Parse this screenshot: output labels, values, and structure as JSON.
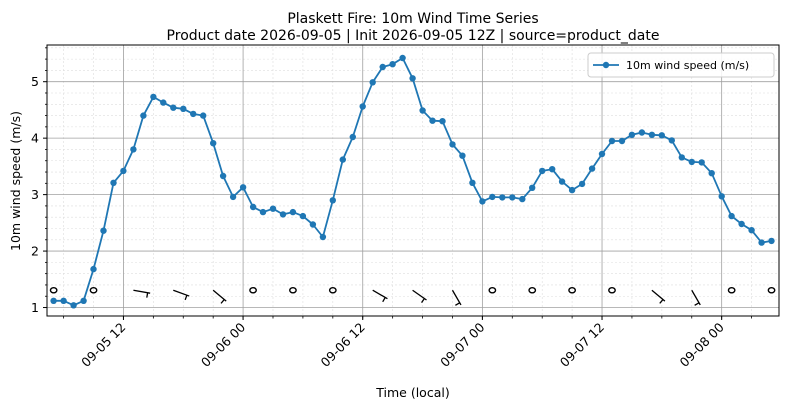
{
  "chart_data": {
    "type": "line",
    "title": "Plaskett Fire: 10m Wind Time Series",
    "subtitle": "Product date 2026-09-05 | Init 2026-09-05 12Z | source=product_date",
    "xlabel": "Time (local)",
    "ylabel": "10m wind speed (m/s)",
    "xlim": [
      "2026-09-05 04:20",
      "2026-09-08 05:45"
    ],
    "ylim": [
      0.85,
      5.65
    ],
    "yticks": [
      1,
      2,
      3,
      4,
      5
    ],
    "xticks": [
      "09-05 12",
      "09-06 00",
      "09-06 12",
      "09-07 00",
      "09-07 12",
      "09-08 00"
    ],
    "grid": true,
    "legend_position": "top-right",
    "series": [
      {
        "name": "10m wind speed (m/s)",
        "color": "#1f77b4",
        "x": [
          "2026-09-05 05:00",
          "2026-09-05 06:00",
          "2026-09-05 07:00",
          "2026-09-05 08:00",
          "2026-09-05 09:00",
          "2026-09-05 10:00",
          "2026-09-05 11:00",
          "2026-09-05 12:00",
          "2026-09-05 13:00",
          "2026-09-05 14:00",
          "2026-09-05 15:00",
          "2026-09-05 16:00",
          "2026-09-05 17:00",
          "2026-09-05 18:00",
          "2026-09-05 19:00",
          "2026-09-05 20:00",
          "2026-09-05 21:00",
          "2026-09-05 22:00",
          "2026-09-05 23:00",
          "2026-09-06 00:00",
          "2026-09-06 01:00",
          "2026-09-06 02:00",
          "2026-09-06 03:00",
          "2026-09-06 04:00",
          "2026-09-06 05:00",
          "2026-09-06 06:00",
          "2026-09-06 07:00",
          "2026-09-06 08:00",
          "2026-09-06 09:00",
          "2026-09-06 10:00",
          "2026-09-06 11:00",
          "2026-09-06 12:00",
          "2026-09-06 13:00",
          "2026-09-06 14:00",
          "2026-09-06 15:00",
          "2026-09-06 16:00",
          "2026-09-06 17:00",
          "2026-09-06 18:00",
          "2026-09-06 19:00",
          "2026-09-06 20:00",
          "2026-09-06 21:00",
          "2026-09-06 22:00",
          "2026-09-06 23:00",
          "2026-09-07 00:00",
          "2026-09-07 01:00",
          "2026-09-07 02:00",
          "2026-09-07 03:00",
          "2026-09-07 04:00",
          "2026-09-07 05:00",
          "2026-09-07 06:00",
          "2026-09-07 07:00",
          "2026-09-07 08:00",
          "2026-09-07 09:00",
          "2026-09-07 10:00",
          "2026-09-07 11:00",
          "2026-09-07 12:00",
          "2026-09-07 13:00",
          "2026-09-07 14:00",
          "2026-09-07 15:00",
          "2026-09-07 16:00",
          "2026-09-07 17:00",
          "2026-09-07 18:00",
          "2026-09-07 19:00",
          "2026-09-07 20:00",
          "2026-09-07 21:00",
          "2026-09-07 22:00",
          "2026-09-07 23:00",
          "2026-09-08 00:00",
          "2026-09-08 01:00",
          "2026-09-08 02:00",
          "2026-09-08 03:00",
          "2026-09-08 04:00",
          "2026-09-08 05:00"
        ],
        "values": [
          1.12,
          1.12,
          1.04,
          1.12,
          1.68,
          2.36,
          3.21,
          3.42,
          3.8,
          4.4,
          4.73,
          4.63,
          4.54,
          4.52,
          4.43,
          4.4,
          3.91,
          3.33,
          2.96,
          3.13,
          2.78,
          2.69,
          2.75,
          2.65,
          2.69,
          2.62,
          2.47,
          2.25,
          2.9,
          3.62,
          4.02,
          4.56,
          4.99,
          5.26,
          5.31,
          5.42,
          5.06,
          4.49,
          4.31,
          4.3,
          3.89,
          3.69,
          3.21,
          2.88,
          2.96,
          2.95,
          2.95,
          2.92,
          3.12,
          3.42,
          3.45,
          3.23,
          3.08,
          3.19,
          3.46,
          3.72,
          3.95,
          3.95,
          4.06,
          4.1,
          4.06,
          4.05,
          3.96,
          3.66,
          3.58,
          3.57,
          3.38,
          2.97,
          2.62,
          2.48,
          2.37,
          2.15,
          2.18
        ]
      }
    ],
    "wind_barbs": {
      "y": 1.2,
      "x": [
        "2026-09-05 05:00",
        "2026-09-05 09:00",
        "2026-09-05 13:00",
        "2026-09-05 17:00",
        "2026-09-05 21:00",
        "2026-09-06 01:00",
        "2026-09-06 05:00",
        "2026-09-06 09:00",
        "2026-09-06 13:00",
        "2026-09-06 17:00",
        "2026-09-06 21:00",
        "2026-09-07 01:00",
        "2026-09-07 05:00",
        "2026-09-07 09:00",
        "2026-09-07 13:00",
        "2026-09-07 17:00",
        "2026-09-07 21:00",
        "2026-09-08 01:00",
        "2026-09-08 05:00"
      ],
      "marks": [
        "calm",
        "calm",
        "barb",
        "barb",
        "barb",
        "calm",
        "calm",
        "calm",
        "barb",
        "barb",
        "barb",
        "calm",
        "calm",
        "calm",
        "calm",
        "barb",
        "barb",
        "calm",
        "calm"
      ],
      "directions_deg": [
        0,
        0,
        280,
        290,
        310,
        0,
        0,
        0,
        300,
        305,
        330,
        0,
        0,
        0,
        0,
        310,
        330,
        0,
        0
      ]
    }
  }
}
